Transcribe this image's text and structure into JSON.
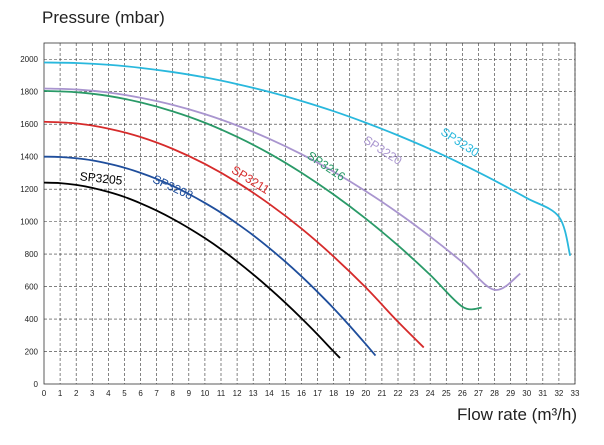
{
  "chart_data": {
    "type": "line",
    "ylabel": "Pressure (mbar)",
    "xlabel": "Flow rate (m³/h)",
    "xlim": [
      0,
      33
    ],
    "ylim": [
      0,
      2100
    ],
    "x_ticks": [
      0,
      1,
      2,
      3,
      4,
      5,
      6,
      7,
      8,
      9,
      10,
      11,
      12,
      13,
      14,
      15,
      16,
      17,
      18,
      19,
      20,
      21,
      22,
      23,
      24,
      25,
      26,
      27,
      28,
      29,
      30,
      31,
      32,
      33
    ],
    "y_ticks": [
      0,
      200,
      400,
      600,
      800,
      1000,
      1200,
      1400,
      1600,
      1800,
      2000
    ],
    "grid": true,
    "series": [
      {
        "name": "SP3205",
        "color": "#000000",
        "label_at": [
          2.2,
          1255
        ],
        "label_rot": 6,
        "x": [
          0,
          1,
          2,
          3,
          4,
          5,
          6,
          7,
          8,
          9,
          10,
          11,
          12,
          13,
          14,
          15,
          16,
          17,
          18,
          18.4
        ],
        "y": [
          1240,
          1237,
          1226,
          1208,
          1183,
          1152,
          1113,
          1068,
          1017,
          960,
          898,
          830,
          755,
          675,
          590,
          500,
          405,
          305,
          200,
          160
        ]
      },
      {
        "name": "SP3208",
        "color": "#1f4e9c",
        "label_at": [
          6.7,
          1245
        ],
        "label_rot": 25,
        "x": [
          0,
          1,
          2,
          3,
          4,
          5,
          6,
          7,
          8,
          9,
          10,
          11,
          12,
          13,
          14,
          15,
          16,
          17,
          18,
          19,
          20,
          20.6
        ],
        "y": [
          1400,
          1398,
          1390,
          1377,
          1357,
          1332,
          1300,
          1263,
          1220,
          1170,
          1115,
          1055,
          988,
          916,
          837,
          753,
          663,
          567,
          466,
          358,
          245,
          175
        ]
      },
      {
        "name": "SP3211",
        "color": "#d62b2b",
        "label_at": [
          11.6,
          1305
        ],
        "label_rot": 32,
        "x": [
          0,
          2,
          4,
          6,
          8,
          10,
          12,
          14,
          16,
          18,
          20,
          22,
          23.6
        ],
        "y": [
          1615,
          1605,
          1573,
          1521,
          1448,
          1355,
          1242,
          1109,
          957,
          785,
          594,
          383,
          225
        ]
      },
      {
        "name": "SP3216",
        "color": "#2a9a68",
        "label_at": [
          16.3,
          1395
        ],
        "label_rot": 34,
        "x": [
          0,
          2,
          4,
          6,
          8,
          10,
          12,
          14,
          16,
          18,
          20,
          22,
          24,
          26,
          27.2
        ],
        "y": [
          1805,
          1797,
          1774,
          1734,
          1679,
          1609,
          1522,
          1420,
          1301,
          1167,
          1018,
          853,
          672,
          476,
          470
        ]
      },
      {
        "name": "SP3220",
        "color": "#a995cf",
        "label_at": [
          19.8,
          1490
        ],
        "label_rot": 33,
        "x": [
          0,
          2,
          4,
          6,
          8,
          10,
          12,
          14,
          16,
          18,
          20,
          22,
          24,
          26,
          28,
          29.6
        ],
        "y": [
          1820,
          1814,
          1795,
          1763,
          1719,
          1662,
          1592,
          1510,
          1415,
          1307,
          1187,
          1054,
          908,
          750,
          580,
          680
        ]
      },
      {
        "name": "SP3230",
        "color": "#29b8dd",
        "label_at": [
          24.6,
          1540
        ],
        "label_rot": 33,
        "x": [
          0,
          2,
          4,
          6,
          8,
          10,
          12,
          14,
          16,
          18,
          20,
          22,
          24,
          26,
          28,
          30,
          32,
          32.7
        ],
        "y": [
          1980,
          1977,
          1966,
          1947,
          1921,
          1888,
          1847,
          1799,
          1743,
          1680,
          1609,
          1531,
          1446,
          1353,
          1253,
          1145,
          1030,
          790
        ]
      }
    ]
  }
}
